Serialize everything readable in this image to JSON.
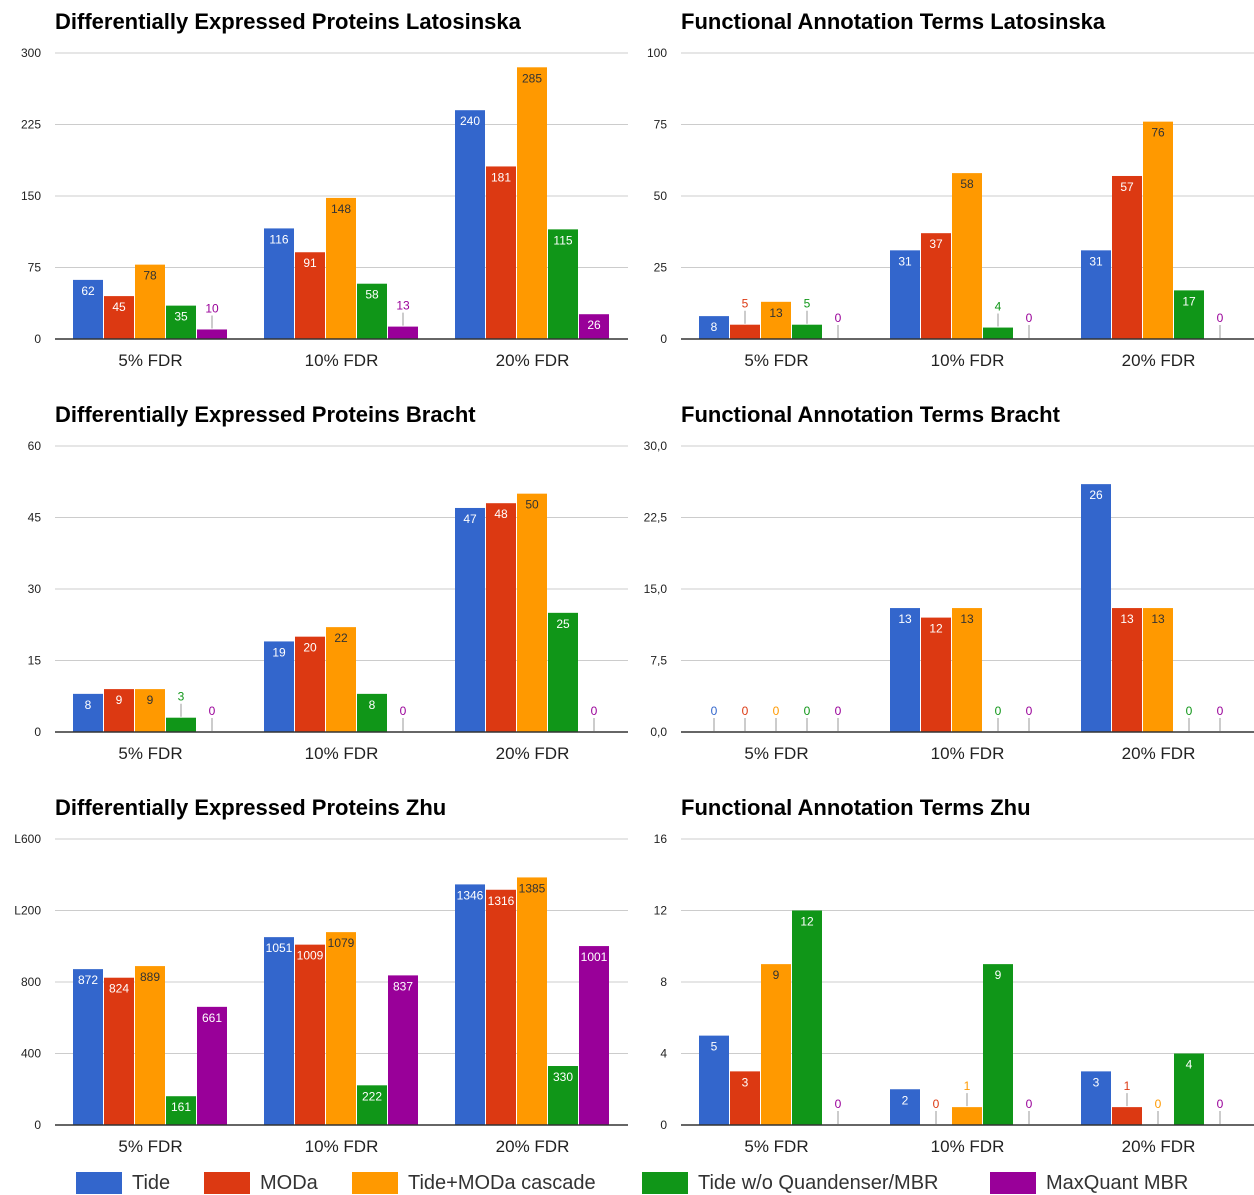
{
  "colors": {
    "Tide": "#3366cc",
    "MODa": "#dc3912",
    "Tide+MODa cascade": "#ff9900",
    "Tide w/o Quandenser/MBR": "#109618",
    "MaxQuant MBR": "#990099",
    "grid": "#cccccc",
    "axis": "#333333",
    "text": "#222222"
  },
  "legend": {
    "items": [
      {
        "label": "Tide",
        "color": "#3366cc"
      },
      {
        "label": "MODa",
        "color": "#dc3912"
      },
      {
        "label": "Tide+MODa cascade",
        "color": "#ff9900"
      },
      {
        "label": "Tide w/o Quandenser/MBR",
        "color": "#109618"
      },
      {
        "label": "MaxQuant MBR",
        "color": "#990099"
      }
    ]
  },
  "chart_data": [
    {
      "type": "bar",
      "title": "Differentially Expressed Proteins Latosinska",
      "categories": [
        "5% FDR",
        "10% FDR",
        "20% FDR"
      ],
      "ylim": [
        0,
        300
      ],
      "yticks": [
        "0",
        "75",
        "150",
        "225",
        "300"
      ],
      "grid": true,
      "series": [
        {
          "name": "Tide",
          "values": [
            62,
            116,
            240
          ]
        },
        {
          "name": "MODa",
          "values": [
            45,
            91,
            181
          ]
        },
        {
          "name": "Tide+MODa cascade",
          "values": [
            78,
            148,
            285
          ]
        },
        {
          "name": "Tide w/o Quandenser/MBR",
          "values": [
            35,
            58,
            115
          ]
        },
        {
          "name": "MaxQuant MBR",
          "values": [
            10,
            13,
            26
          ]
        }
      ]
    },
    {
      "type": "bar",
      "title": "Functional Annotation Terms Latosinska",
      "categories": [
        "5% FDR",
        "10% FDR",
        "20% FDR"
      ],
      "ylim": [
        0,
        100
      ],
      "yticks": [
        "0",
        "25",
        "50",
        "75",
        "100"
      ],
      "grid": true,
      "series": [
        {
          "name": "Tide",
          "values": [
            8,
            31,
            31
          ]
        },
        {
          "name": "MODa",
          "values": [
            5,
            37,
            57
          ]
        },
        {
          "name": "Tide+MODa cascade",
          "values": [
            13,
            58,
            76
          ]
        },
        {
          "name": "Tide w/o Quandenser/MBR",
          "values": [
            5,
            4,
            17
          ]
        },
        {
          "name": "MaxQuant MBR",
          "values": [
            0,
            0,
            0
          ]
        }
      ]
    },
    {
      "type": "bar",
      "title": "Differentially Expressed Proteins Bracht",
      "categories": [
        "5% FDR",
        "10% FDR",
        "20% FDR"
      ],
      "ylim": [
        0,
        60
      ],
      "yticks": [
        "0",
        "15",
        "30",
        "45",
        "60"
      ],
      "grid": true,
      "series": [
        {
          "name": "Tide",
          "values": [
            8,
            19,
            47
          ]
        },
        {
          "name": "MODa",
          "values": [
            9,
            20,
            48
          ]
        },
        {
          "name": "Tide+MODa cascade",
          "values": [
            9,
            22,
            50
          ]
        },
        {
          "name": "Tide w/o Quandenser/MBR",
          "values": [
            3,
            8,
            25
          ]
        },
        {
          "name": "MaxQuant MBR",
          "values": [
            0,
            0,
            0
          ]
        }
      ]
    },
    {
      "type": "bar",
      "title": "Functional Annotation Terms Bracht",
      "categories": [
        "5% FDR",
        "10% FDR",
        "20% FDR"
      ],
      "ylim": [
        0,
        30
      ],
      "yticks": [
        "0,0",
        "7,5",
        "15,0",
        "22,5",
        "30,0"
      ],
      "grid": true,
      "series": [
        {
          "name": "Tide",
          "values": [
            0,
            13,
            26
          ]
        },
        {
          "name": "MODa",
          "values": [
            0,
            12,
            13
          ]
        },
        {
          "name": "Tide+MODa cascade",
          "values": [
            0,
            13,
            13
          ]
        },
        {
          "name": "Tide w/o Quandenser/MBR",
          "values": [
            0,
            0,
            0
          ]
        },
        {
          "name": "MaxQuant MBR",
          "values": [
            0,
            0,
            0
          ]
        }
      ]
    },
    {
      "type": "bar",
      "title": "Differentially Expressed Proteins Zhu",
      "categories": [
        "5% FDR",
        "10% FDR",
        "20% FDR"
      ],
      "ylim": [
        0,
        1600
      ],
      "yticks": [
        "0",
        "400",
        "800",
        "L200",
        "L600"
      ],
      "grid": true,
      "series": [
        {
          "name": "Tide",
          "values": [
            872,
            1051,
            1346
          ]
        },
        {
          "name": "MODa",
          "values": [
            824,
            1009,
            1316
          ]
        },
        {
          "name": "Tide+MODa cascade",
          "values": [
            889,
            1079,
            1385
          ]
        },
        {
          "name": "Tide w/o Quandenser/MBR",
          "values": [
            161,
            222,
            330
          ]
        },
        {
          "name": "MaxQuant MBR",
          "values": [
            661,
            837,
            1001
          ]
        }
      ]
    },
    {
      "type": "bar",
      "title": "Functional Annotation Terms Zhu",
      "categories": [
        "5% FDR",
        "10% FDR",
        "20% FDR"
      ],
      "ylim": [
        0,
        16
      ],
      "yticks": [
        "0",
        "4",
        "8",
        "12",
        "16"
      ],
      "grid": true,
      "series": [
        {
          "name": "Tide",
          "values": [
            5,
            2,
            3
          ]
        },
        {
          "name": "MODa",
          "values": [
            3,
            0,
            1
          ]
        },
        {
          "name": "Tide+MODa cascade",
          "values": [
            9,
            1,
            0
          ]
        },
        {
          "name": "Tide w/o Quandenser/MBR",
          "values": [
            12,
            9,
            4
          ]
        },
        {
          "name": "MaxQuant MBR",
          "values": [
            0,
            0,
            0
          ]
        }
      ]
    }
  ]
}
